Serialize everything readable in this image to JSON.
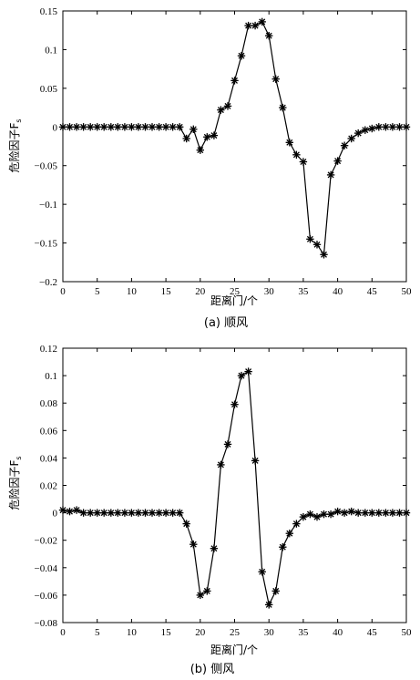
{
  "chart_data": [
    {
      "type": "line",
      "caption": "(a) 顺风",
      "xlabel": "距离门/个",
      "ylabel": "危险因子F",
      "ylabel_sub": "s",
      "xlim": [
        0,
        50
      ],
      "ylim": [
        -0.2,
        0.15
      ],
      "xticks": [
        0,
        5,
        10,
        15,
        20,
        25,
        30,
        35,
        40,
        45,
        50
      ],
      "yticks": [
        0.15,
        0.1,
        0.05,
        0,
        -0.05,
        -0.1,
        -0.15,
        -0.2
      ],
      "ytick_labels": [
        "0.15",
        "0.1",
        "0.05",
        "0",
        "−0.05",
        "−0.1",
        "−0.15",
        "−0.2"
      ],
      "marker": "asterisk",
      "series": [
        {
          "x": [
            0,
            1,
            2,
            3,
            4,
            5,
            6,
            7,
            8,
            9,
            10,
            11,
            12,
            13,
            14,
            15,
            16,
            17,
            18,
            19,
            20,
            21,
            22,
            23,
            24,
            25,
            26,
            27,
            28,
            29,
            30,
            31,
            32,
            33,
            34,
            35,
            36,
            37,
            38,
            39,
            40,
            41,
            42,
            43,
            44,
            45,
            46,
            47,
            48,
            49,
            50
          ],
          "values": [
            0,
            0,
            0,
            0,
            0,
            0,
            0,
            0,
            0,
            0,
            0,
            0,
            0,
            0,
            0,
            0,
            0,
            0,
            -0.015,
            -0.003,
            -0.03,
            -0.013,
            -0.011,
            0.022,
            0.027,
            0.06,
            0.092,
            0.131,
            0.131,
            0.136,
            0.118,
            0.062,
            0.025,
            -0.02,
            -0.036,
            -0.045,
            -0.145,
            -0.152,
            -0.165,
            -0.062,
            -0.044,
            -0.024,
            -0.015,
            -0.008,
            -0.004,
            -0.002,
            0,
            0,
            0,
            0,
            0
          ]
        }
      ]
    },
    {
      "type": "line",
      "caption": "(b) 侧风",
      "xlabel": "距离门/个",
      "ylabel": "危险因子F",
      "ylabel_sub": "s",
      "xlim": [
        0,
        50
      ],
      "ylim": [
        -0.08,
        0.12
      ],
      "xticks": [
        0,
        5,
        10,
        15,
        20,
        25,
        30,
        35,
        40,
        45,
        50
      ],
      "yticks": [
        0.12,
        0.1,
        0.08,
        0.06,
        0.04,
        0.02,
        0,
        -0.02,
        -0.04,
        -0.06,
        -0.08
      ],
      "ytick_labels": [
        "0.12",
        "0.1",
        "0.08",
        "0.06",
        "0.04",
        "0.02",
        "0",
        "−0.02",
        "−0.04",
        "−0.06",
        "−0.08"
      ],
      "marker": "asterisk",
      "series": [
        {
          "x": [
            0,
            1,
            2,
            3,
            4,
            5,
            6,
            7,
            8,
            9,
            10,
            11,
            12,
            13,
            14,
            15,
            16,
            17,
            18,
            19,
            20,
            21,
            22,
            23,
            24,
            25,
            26,
            27,
            28,
            29,
            30,
            31,
            32,
            33,
            34,
            35,
            36,
            37,
            38,
            39,
            40,
            41,
            42,
            43,
            44,
            45,
            46,
            47,
            48,
            49,
            50
          ],
          "values": [
            0.002,
            0.001,
            0.002,
            0,
            0,
            0,
            0,
            0,
            0,
            0,
            0,
            0,
            0,
            0,
            0,
            0,
            0,
            0,
            -0.008,
            -0.023,
            -0.06,
            -0.057,
            -0.026,
            0.035,
            0.05,
            0.079,
            0.1,
            0.103,
            0.038,
            -0.043,
            -0.067,
            -0.057,
            -0.025,
            -0.015,
            -0.008,
            -0.003,
            -0.001,
            -0.003,
            -0.001,
            -0.001,
            0.001,
            0,
            0.001,
            0,
            0,
            0,
            0,
            0,
            0,
            0,
            0
          ]
        }
      ]
    }
  ]
}
